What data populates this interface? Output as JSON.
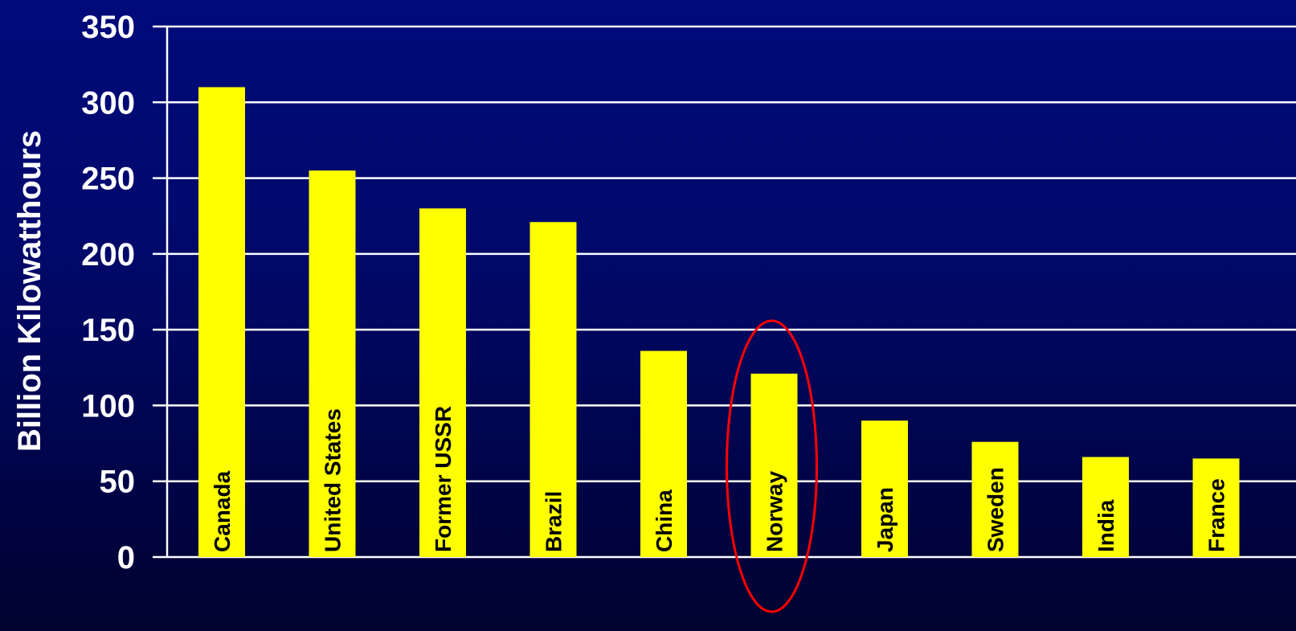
{
  "chart_data": {
    "type": "bar",
    "title": "",
    "xlabel": "",
    "ylabel": "Billion Kilowatthours",
    "ylim": [
      0,
      350
    ],
    "yticks": [
      0,
      50,
      100,
      150,
      200,
      250,
      300,
      350
    ],
    "grid": true,
    "categories": [
      "Canada",
      "United States",
      "Former USSR",
      "Brazil",
      "China",
      "Norway",
      "Japan",
      "Sweden",
      "India",
      "France"
    ],
    "values": [
      310,
      255,
      230,
      221,
      136,
      121,
      90,
      76,
      66,
      65
    ],
    "highlighted_category": "Norway",
    "colors": {
      "bar": "#ffff00",
      "grid": "#ffffff",
      "highlight": "#ff0000",
      "label": "#000000",
      "text": "#ffffff"
    }
  }
}
